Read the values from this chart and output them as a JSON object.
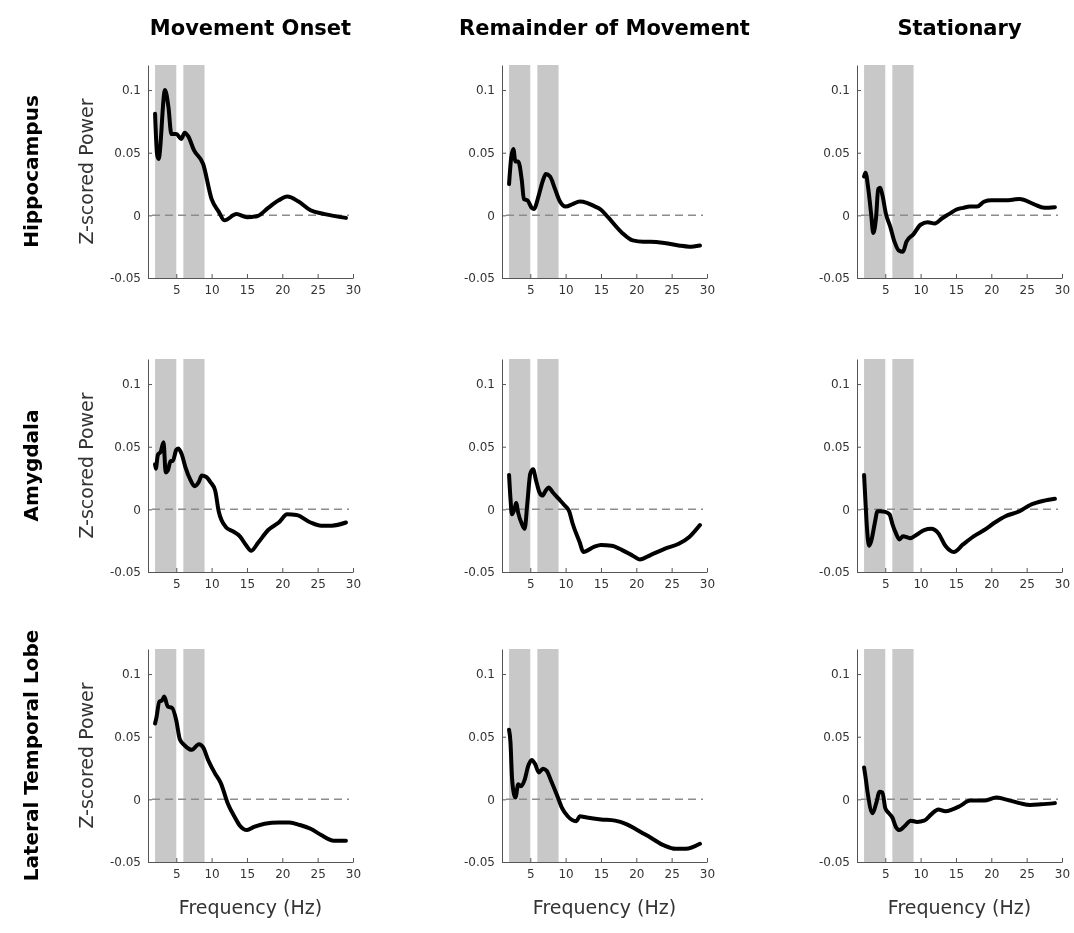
{
  "chart_data": [
    {
      "type": "line",
      "title": "Movement Onset",
      "ylabel": "Z-scored Power",
      "annotations": [
        "Hippocampus"
      ],
      "xlim": [
        1,
        30
      ],
      "xticks": [
        5,
        10,
        15,
        20,
        25,
        30
      ],
      "ylim": [
        -0.05,
        0.12
      ],
      "yticks": [
        -0.05,
        0,
        0.05,
        0.1
      ],
      "bands": [
        {
          "axis": "x",
          "from": 2,
          "to": 5,
          "color": "#c8c8c8"
        },
        {
          "axis": "x",
          "from": 6,
          "to": 9,
          "color": "#c8c8c8"
        }
      ],
      "ref_lines": [
        {
          "axis": "y",
          "value": 0,
          "color": "#8c8c8c",
          "line_style": "dashed"
        }
      ],
      "series": [
        {
          "color": "#000000",
          "x": [
            2,
            2.3,
            2.5,
            3.4,
            3.9,
            4.3,
            5,
            5.7,
            6.2,
            6.7,
            7.5,
            8.8,
            10,
            11,
            11.8,
            13.5,
            15,
            16.5,
            18,
            19.5,
            20.7,
            22.3,
            24,
            26,
            29
          ],
          "values": [
            0.081,
            0.048,
            0.045,
            0.1,
            0.086,
            0.065,
            0.065,
            0.061,
            0.066,
            0.063,
            0.052,
            0.041,
            0.013,
            0.003,
            -0.004,
            0.001,
            -0.0015,
            -0.0005,
            0.006,
            0.012,
            0.015,
            0.011,
            0.004,
            0.001,
            -0.002
          ]
        }
      ]
    },
    {
      "type": "line",
      "title": "Remainder of Movement",
      "xlim": [
        1,
        30
      ],
      "xticks": [
        5,
        10,
        15,
        20,
        25,
        30
      ],
      "ylim": [
        -0.05,
        0.12
      ],
      "yticks": [
        -0.05,
        0,
        0.05,
        0.1
      ],
      "bands": [
        {
          "axis": "x",
          "from": 2,
          "to": 5,
          "color": "#c8c8c8"
        },
        {
          "axis": "x",
          "from": 6,
          "to": 9,
          "color": "#c8c8c8"
        }
      ],
      "ref_lines": [
        {
          "axis": "y",
          "value": 0,
          "color": "#8c8c8c",
          "line_style": "dashed"
        }
      ],
      "series": [
        {
          "color": "#000000",
          "x": [
            2,
            2.3,
            2.6,
            2.9,
            3.3,
            3.8,
            4.1,
            4.6,
            5.2,
            5.5,
            6.2,
            6.8,
            7.2,
            7.8,
            8.5,
            9.2,
            10,
            11,
            12,
            13,
            14,
            15,
            16,
            18,
            19.5,
            21,
            22,
            24,
            26,
            27.5,
            29
          ],
          "values": [
            0.025,
            0.046,
            0.053,
            0.043,
            0.043,
            0.028,
            0.013,
            0.012,
            0.006,
            0.005,
            0.016,
            0.028,
            0.033,
            0.031,
            0.021,
            0.011,
            0.007,
            0.009,
            0.011,
            0.01,
            0.0075,
            0.0045,
            -0.0015,
            -0.014,
            -0.02,
            -0.021,
            -0.021,
            -0.022,
            -0.024,
            -0.025,
            -0.024
          ]
        }
      ]
    },
    {
      "type": "line",
      "title": "Stationary",
      "xlim": [
        1,
        30
      ],
      "xticks": [
        5,
        10,
        15,
        20,
        25,
        30
      ],
      "ylim": [
        -0.05,
        0.12
      ],
      "yticks": [
        -0.05,
        0,
        0.05,
        0.1
      ],
      "bands": [
        {
          "axis": "x",
          "from": 2,
          "to": 5,
          "color": "#c8c8c8"
        },
        {
          "axis": "x",
          "from": 6,
          "to": 9,
          "color": "#c8c8c8"
        }
      ],
      "ref_lines": [
        {
          "axis": "y",
          "value": 0,
          "color": "#8c8c8c",
          "line_style": "dashed"
        }
      ],
      "series": [
        {
          "color": "#000000",
          "x": [
            2,
            2.2,
            2.6,
            3,
            3.3,
            3.7,
            4,
            4.3,
            4.6,
            5.1,
            5.7,
            6.3,
            6.9,
            7.5,
            8,
            9,
            10,
            11,
            12,
            13,
            14,
            15,
            16,
            17,
            18,
            19,
            20,
            22,
            24,
            26,
            27.5,
            29
          ],
          "values": [
            0.031,
            0.034,
            0.021,
            0.001,
            -0.014,
            -0.0015,
            0.021,
            0.022,
            0.016,
            0.001,
            -0.009,
            -0.021,
            -0.028,
            -0.029,
            -0.021,
            -0.015,
            -0.0075,
            -0.0055,
            -0.0065,
            -0.0025,
            0.001,
            0.0045,
            0.006,
            0.007,
            0.007,
            0.011,
            0.012,
            0.012,
            0.013,
            0.009,
            0.006,
            0.0065
          ]
        }
      ]
    },
    {
      "type": "line",
      "ylabel": "Z-scored Power",
      "annotations": [
        "Amygdala"
      ],
      "xlim": [
        1,
        30
      ],
      "xticks": [
        5,
        10,
        15,
        20,
        25,
        30
      ],
      "ylim": [
        -0.05,
        0.12
      ],
      "yticks": [
        -0.05,
        0,
        0.05,
        0.1
      ],
      "bands": [
        {
          "axis": "x",
          "from": 2,
          "to": 5,
          "color": "#c8c8c8"
        },
        {
          "axis": "x",
          "from": 6,
          "to": 9,
          "color": "#c8c8c8"
        }
      ],
      "ref_lines": [
        {
          "axis": "y",
          "value": 0,
          "color": "#8c8c8c",
          "line_style": "dashed"
        }
      ],
      "series": [
        {
          "color": "#000000",
          "x": [
            2,
            2.1,
            2.4,
            2.8,
            3.2,
            3.5,
            3.8,
            4.2,
            4.5,
            5,
            5.3,
            5.8,
            6.3,
            7,
            7.6,
            8.2,
            8.6,
            9.2,
            9.8,
            10.5,
            11,
            12,
            13,
            14,
            14.8,
            15.6,
            16.6,
            18,
            19.5,
            20.7,
            22,
            24,
            25.5,
            27,
            29
          ],
          "values": [
            0.036,
            0.0325,
            0.0435,
            0.046,
            0.0535,
            0.0295,
            0.031,
            0.0385,
            0.0385,
            0.0475,
            0.0485,
            0.0435,
            0.0335,
            0.0235,
            0.0185,
            0.022,
            0.027,
            0.026,
            0.022,
            0.015,
            -0.0015,
            -0.014,
            -0.0175,
            -0.0215,
            -0.028,
            -0.033,
            -0.0265,
            -0.0165,
            -0.0105,
            -0.004,
            -0.0045,
            -0.0105,
            -0.013,
            -0.013,
            -0.0105
          ]
        }
      ]
    },
    {
      "type": "line",
      "xlim": [
        1,
        30
      ],
      "xticks": [
        5,
        10,
        15,
        20,
        25,
        30
      ],
      "ylim": [
        -0.05,
        0.12
      ],
      "yticks": [
        -0.05,
        0,
        0.05,
        0.1
      ],
      "bands": [
        {
          "axis": "x",
          "from": 2,
          "to": 5,
          "color": "#c8c8c8"
        },
        {
          "axis": "x",
          "from": 6,
          "to": 9,
          "color": "#c8c8c8"
        }
      ],
      "ref_lines": [
        {
          "axis": "y",
          "value": 0,
          "color": "#8c8c8c",
          "line_style": "dashed"
        }
      ],
      "series": [
        {
          "color": "#000000",
          "x": [
            2,
            2.2,
            2.4,
            2.8,
            3,
            3.3,
            3.8,
            4.2,
            4.6,
            5,
            5.4,
            5.8,
            6.3,
            6.7,
            7.2,
            7.6,
            8.2,
            9,
            9.8,
            10.5,
            11,
            12,
            12.5,
            14,
            15,
            16.5,
            18,
            19.5,
            20.5,
            22,
            24,
            26,
            27.5,
            29
          ],
          "values": [
            0.0275,
            0.0085,
            -0.004,
            0.001,
            0.005,
            -0.003,
            -0.0115,
            -0.0155,
            0.006,
            0.0285,
            0.032,
            0.0235,
            0.0135,
            0.011,
            0.015,
            0.0175,
            0.0135,
            0.0085,
            0.0035,
            -0.0015,
            -0.0115,
            -0.0265,
            -0.034,
            -0.03,
            -0.0285,
            -0.029,
            -0.0325,
            -0.037,
            -0.04,
            -0.0365,
            -0.0315,
            -0.0275,
            -0.022,
            -0.0125
          ]
        }
      ]
    },
    {
      "type": "line",
      "xlim": [
        1,
        30
      ],
      "xticks": [
        5,
        10,
        15,
        20,
        25,
        30
      ],
      "ylim": [
        -0.05,
        0.12
      ],
      "yticks": [
        -0.05,
        0,
        0.05,
        0.1
      ],
      "bands": [
        {
          "axis": "x",
          "from": 2,
          "to": 5,
          "color": "#c8c8c8"
        },
        {
          "axis": "x",
          "from": 6,
          "to": 9,
          "color": "#c8c8c8"
        }
      ],
      "ref_lines": [
        {
          "axis": "y",
          "value": 0,
          "color": "#8c8c8c",
          "line_style": "dashed"
        }
      ],
      "series": [
        {
          "color": "#000000",
          "x": [
            2,
            2.2,
            2.4,
            2.7,
            3,
            3.5,
            3.9,
            4.3,
            5,
            5.6,
            6,
            6.5,
            7,
            7.5,
            8.5,
            9.5,
            10.5,
            11.5,
            12.5,
            13.5,
            14.7,
            16,
            17.5,
            19,
            20.5,
            22,
            24,
            25.5,
            27.5,
            29
          ],
          "values": [
            0.0275,
            0.006,
            -0.014,
            -0.029,
            -0.0255,
            -0.0115,
            -0.0015,
            -0.0015,
            -0.002,
            -0.004,
            -0.0115,
            -0.019,
            -0.024,
            -0.0215,
            -0.023,
            -0.02,
            -0.0165,
            -0.0155,
            -0.019,
            -0.029,
            -0.034,
            -0.028,
            -0.0215,
            -0.0165,
            -0.0105,
            -0.0055,
            -0.0015,
            0.0035,
            0.007,
            0.0085
          ]
        }
      ]
    },
    {
      "type": "line",
      "xlabel": "Frequency (Hz)",
      "ylabel": "Z-scored Power",
      "annotations": [
        "Lateral Temporal Lobe"
      ],
      "xlim": [
        1,
        30
      ],
      "xticks": [
        5,
        10,
        15,
        20,
        25,
        30
      ],
      "ylim": [
        -0.05,
        0.12
      ],
      "yticks": [
        -0.05,
        0,
        0.05,
        0.1
      ],
      "bands": [
        {
          "axis": "x",
          "from": 2,
          "to": 5,
          "color": "#c8c8c8"
        },
        {
          "axis": "x",
          "from": 6,
          "to": 9,
          "color": "#c8c8c8"
        }
      ],
      "ref_lines": [
        {
          "axis": "y",
          "value": 0,
          "color": "#8c8c8c",
          "line_style": "dashed"
        }
      ],
      "series": [
        {
          "color": "#000000",
          "x": [
            2,
            2.2,
            2.6,
            3,
            3.3,
            3.8,
            4.4,
            5,
            5.5,
            6.2,
            7.2,
            8.2,
            8.8,
            9.5,
            10.5,
            11.3,
            12.3,
            13.3,
            14,
            15,
            16,
            17.5,
            19.5,
            21,
            22.5,
            24,
            25.5,
            27.3,
            29
          ],
          "values": [
            0.0605,
            0.0655,
            0.078,
            0.079,
            0.082,
            0.074,
            0.073,
            0.063,
            0.048,
            0.043,
            0.0395,
            0.044,
            0.0415,
            0.0315,
            0.0205,
            0.013,
            -0.0035,
            -0.0145,
            -0.021,
            -0.0245,
            -0.022,
            -0.0195,
            -0.0185,
            -0.0185,
            -0.0205,
            -0.0235,
            -0.0285,
            -0.033,
            -0.033
          ]
        }
      ]
    },
    {
      "type": "line",
      "xlabel": "Frequency (Hz)",
      "xlim": [
        1,
        30
      ],
      "xticks": [
        5,
        10,
        15,
        20,
        25,
        30
      ],
      "ylim": [
        -0.05,
        0.12
      ],
      "yticks": [
        -0.05,
        0,
        0.05,
        0.1
      ],
      "bands": [
        {
          "axis": "x",
          "from": 2,
          "to": 5,
          "color": "#c8c8c8"
        },
        {
          "axis": "x",
          "from": 6,
          "to": 9,
          "color": "#c8c8c8"
        }
      ],
      "ref_lines": [
        {
          "axis": "y",
          "value": 0,
          "color": "#8c8c8c",
          "line_style": "dashed"
        }
      ],
      "series": [
        {
          "color": "#000000",
          "x": [
            2,
            2.2,
            2.4,
            2.7,
            2.9,
            3.3,
            3.7,
            4.2,
            4.7,
            5.2,
            5.7,
            6.2,
            6.8,
            7.3,
            8,
            8.8,
            9.5,
            10.3,
            11.5,
            12,
            13,
            15,
            17,
            18.5,
            20,
            22,
            24,
            25.5,
            27,
            29
          ],
          "values": [
            0.0555,
            0.0455,
            0.019,
            0.004,
            0.0015,
            0.012,
            0.0105,
            0.0155,
            0.0265,
            0.0315,
            0.028,
            0.0215,
            0.0245,
            0.023,
            0.014,
            0.003,
            -0.007,
            -0.0135,
            -0.0175,
            -0.0135,
            -0.0145,
            -0.016,
            -0.017,
            -0.0195,
            -0.024,
            -0.0305,
            -0.037,
            -0.0395,
            -0.0395,
            -0.0355
          ]
        }
      ]
    },
    {
      "type": "line",
      "xlabel": "Frequency (Hz)",
      "xlim": [
        1,
        30
      ],
      "xticks": [
        5,
        10,
        15,
        20,
        25,
        30
      ],
      "ylim": [
        -0.05,
        0.12
      ],
      "yticks": [
        -0.05,
        0,
        0.05,
        0.1
      ],
      "bands": [
        {
          "axis": "x",
          "from": 2,
          "to": 5,
          "color": "#c8c8c8"
        },
        {
          "axis": "x",
          "from": 6,
          "to": 9,
          "color": "#c8c8c8"
        }
      ],
      "ref_lines": [
        {
          "axis": "y",
          "value": 0,
          "color": "#8c8c8c",
          "line_style": "dashed"
        }
      ],
      "series": [
        {
          "color": "#000000",
          "x": [
            2,
            2.2,
            2.5,
            3.2,
            3.7,
            4.2,
            4.6,
            5,
            5.5,
            6,
            6.5,
            7,
            7.8,
            8.6,
            9.5,
            10.5,
            11.5,
            12.5,
            13.5,
            14.5,
            15.5,
            17,
            19,
            20.7,
            22,
            24,
            25.5,
            27,
            29
          ],
          "values": [
            0.0255,
            0.018,
            0.0055,
            -0.011,
            -0.0035,
            0.006,
            0.0055,
            -0.007,
            -0.011,
            -0.0145,
            -0.022,
            -0.0245,
            -0.021,
            -0.017,
            -0.018,
            -0.017,
            -0.012,
            -0.008,
            -0.0095,
            -0.008,
            -0.0055,
            -0.001,
            -0.001,
            0.0015,
            0,
            -0.003,
            -0.0045,
            -0.004,
            -0.003
          ]
        }
      ]
    }
  ]
}
